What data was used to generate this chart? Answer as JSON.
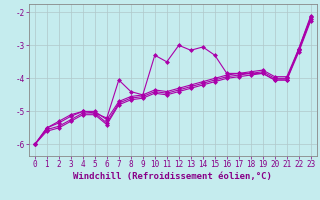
{
  "xlabel": "Windchill (Refroidissement éolien,°C)",
  "background_color": "#c5ecee",
  "line_color": "#aa00aa",
  "grid_color": "#b0c8ca",
  "spine_color": "#888888",
  "ylim": [
    -6.35,
    -1.75
  ],
  "xlim": [
    -0.5,
    23.5
  ],
  "yticks": [
    -6,
    -5,
    -4,
    -3,
    -2
  ],
  "xticks": [
    0,
    1,
    2,
    3,
    4,
    5,
    6,
    7,
    8,
    9,
    10,
    11,
    12,
    13,
    14,
    15,
    16,
    17,
    18,
    19,
    20,
    21,
    22,
    23
  ],
  "lines": [
    [
      [
        0,
        -6.0
      ],
      [
        1,
        -5.5
      ],
      [
        2,
        -5.3
      ],
      [
        3,
        -5.1
      ],
      [
        4,
        -5.0
      ],
      [
        5,
        -5.05
      ],
      [
        6,
        -5.2
      ],
      [
        7,
        -4.05
      ],
      [
        8,
        -4.4
      ],
      [
        9,
        -4.5
      ],
      [
        10,
        -3.3
      ],
      [
        11,
        -3.5
      ],
      [
        12,
        -3.0
      ],
      [
        13,
        -3.15
      ],
      [
        14,
        -3.05
      ],
      [
        15,
        -3.3
      ],
      [
        16,
        -3.85
      ],
      [
        17,
        -3.85
      ],
      [
        18,
        -3.85
      ],
      [
        19,
        -3.85
      ],
      [
        20,
        -4.05
      ],
      [
        21,
        -4.05
      ],
      [
        22,
        -3.1
      ],
      [
        23,
        -2.1
      ]
    ],
    [
      [
        0,
        -6.0
      ],
      [
        1,
        -5.5
      ],
      [
        2,
        -5.35
      ],
      [
        3,
        -5.15
      ],
      [
        4,
        -5.0
      ],
      [
        5,
        -5.0
      ],
      [
        6,
        -5.25
      ],
      [
        7,
        -4.7
      ],
      [
        8,
        -4.55
      ],
      [
        9,
        -4.5
      ],
      [
        10,
        -4.35
      ],
      [
        11,
        -4.4
      ],
      [
        12,
        -4.3
      ],
      [
        13,
        -4.2
      ],
      [
        14,
        -4.1
      ],
      [
        15,
        -4.0
      ],
      [
        16,
        -3.9
      ],
      [
        17,
        -3.85
      ],
      [
        18,
        -3.8
      ],
      [
        19,
        -3.75
      ],
      [
        20,
        -3.95
      ],
      [
        21,
        -3.95
      ],
      [
        22,
        -3.1
      ],
      [
        23,
        -2.15
      ]
    ],
    [
      [
        0,
        -6.0
      ],
      [
        1,
        -5.55
      ],
      [
        2,
        -5.45
      ],
      [
        3,
        -5.25
      ],
      [
        4,
        -5.05
      ],
      [
        5,
        -5.05
      ],
      [
        6,
        -5.35
      ],
      [
        7,
        -4.75
      ],
      [
        8,
        -4.6
      ],
      [
        9,
        -4.55
      ],
      [
        10,
        -4.4
      ],
      [
        11,
        -4.45
      ],
      [
        12,
        -4.35
      ],
      [
        13,
        -4.25
      ],
      [
        14,
        -4.15
      ],
      [
        15,
        -4.05
      ],
      [
        16,
        -3.95
      ],
      [
        17,
        -3.9
      ],
      [
        18,
        -3.85
      ],
      [
        19,
        -3.8
      ],
      [
        20,
        -4.0
      ],
      [
        21,
        -4.0
      ],
      [
        22,
        -3.15
      ],
      [
        23,
        -2.2
      ]
    ],
    [
      [
        0,
        -6.0
      ],
      [
        1,
        -5.6
      ],
      [
        2,
        -5.5
      ],
      [
        3,
        -5.3
      ],
      [
        4,
        -5.1
      ],
      [
        5,
        -5.1
      ],
      [
        6,
        -5.4
      ],
      [
        7,
        -4.8
      ],
      [
        8,
        -4.65
      ],
      [
        9,
        -4.6
      ],
      [
        10,
        -4.45
      ],
      [
        11,
        -4.5
      ],
      [
        12,
        -4.4
      ],
      [
        13,
        -4.3
      ],
      [
        14,
        -4.2
      ],
      [
        15,
        -4.1
      ],
      [
        16,
        -4.0
      ],
      [
        17,
        -3.95
      ],
      [
        18,
        -3.9
      ],
      [
        19,
        -3.85
      ],
      [
        20,
        -4.05
      ],
      [
        21,
        -4.05
      ],
      [
        22,
        -3.2
      ],
      [
        23,
        -2.25
      ]
    ]
  ],
  "marker": "D",
  "markersize": 2.0,
  "linewidth": 0.8,
  "xlabel_fontsize": 6.5,
  "tick_fontsize": 5.5,
  "label_color": "#880088"
}
